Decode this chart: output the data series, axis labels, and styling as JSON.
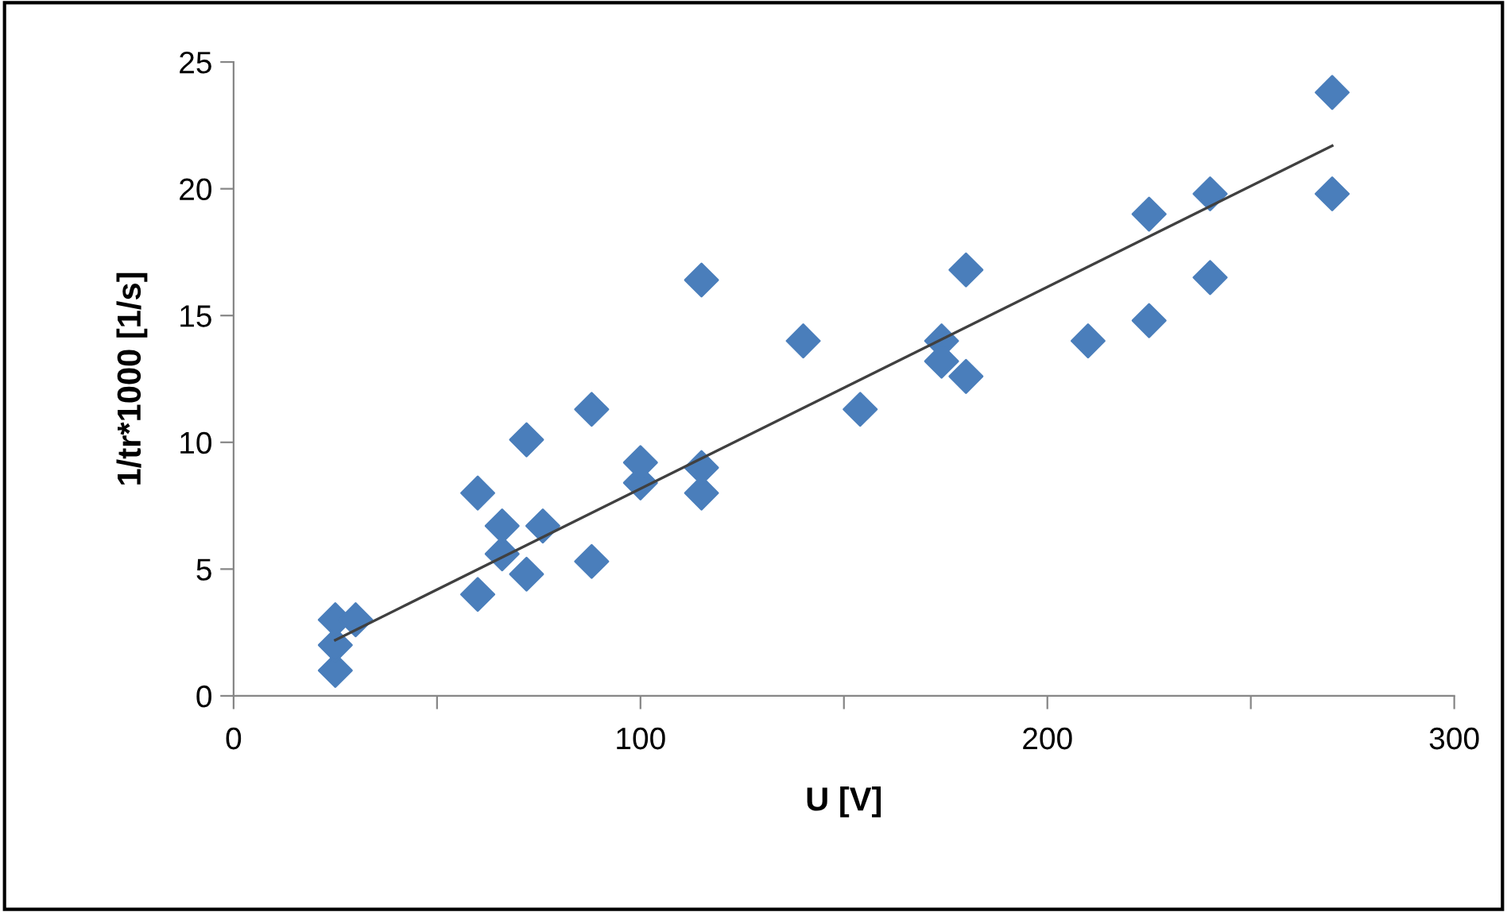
{
  "chart_data": {
    "type": "scatter",
    "xlabel": "U [V]",
    "ylabel": "1/tr*1000 [1/s]",
    "xlim": [
      0,
      300
    ],
    "xticks": [
      0,
      {
        "value": 50,
        "label": null
      },
      100,
      {
        "value": 150,
        "label": null
      },
      200,
      {
        "value": 250,
        "label": null
      },
      300
    ],
    "ylim": [
      0,
      25
    ],
    "yticks": [
      0,
      5,
      10,
      15,
      20,
      25
    ],
    "grid": false,
    "legend": false,
    "series": [
      {
        "marker": "diamond",
        "color": "#4a7ebb",
        "x": [
          25,
          25,
          25,
          30,
          60,
          60,
          66,
          66,
          72,
          72,
          76,
          88,
          88,
          100,
          100,
          115,
          115,
          115,
          140,
          154,
          174,
          174,
          180,
          180,
          210,
          225,
          225,
          240,
          240,
          270,
          270
        ],
        "values": [
          1,
          2,
          3,
          3,
          4,
          8,
          5.6,
          6.7,
          4.8,
          10.1,
          6.7,
          5.3,
          11.3,
          8.4,
          9.2,
          8,
          9,
          16.4,
          14,
          11.3,
          14,
          13.2,
          16.8,
          12.6,
          14,
          19,
          14.8,
          19.8,
          16.5,
          23.8,
          19.8
        ]
      },
      {
        "type": "line",
        "marker": "none",
        "color": "#404040",
        "x": [
          25,
          270
        ],
        "values": [
          2.2,
          21.7
        ]
      }
    ]
  }
}
